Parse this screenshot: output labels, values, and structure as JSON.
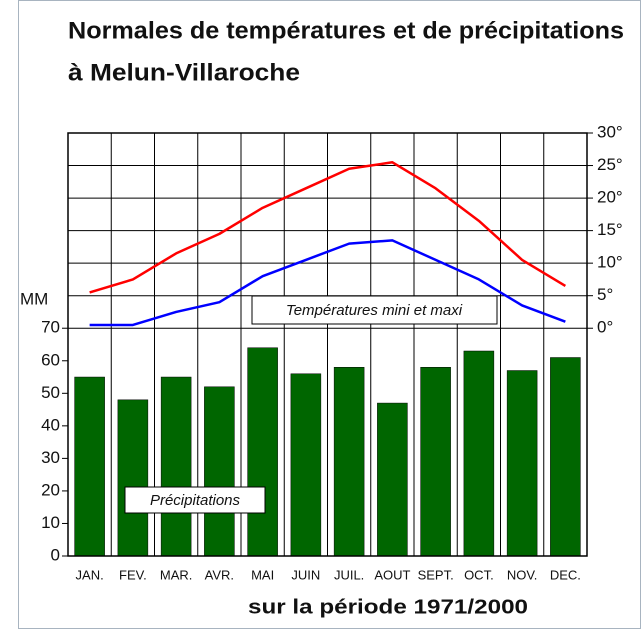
{
  "chart_data": {
    "type": "bar",
    "title": [
      "Normales de températures et de précipitations",
      "à Melun-Villaroche"
    ],
    "subtitle": "sur la période 1971/2000",
    "y_label": "MM",
    "annotations": [
      "Températures mini et maxi"
    ],
    "categories": [
      "JAN.",
      "FEV.",
      "MAR.",
      "AVR.",
      "MAI",
      "JUIN",
      "JUIL.",
      "AOUT",
      "SEPT.",
      "OCT.",
      "NOV.",
      "DEC."
    ],
    "series": [
      {
        "name": "Précipitations",
        "type": "bar",
        "color": "#006600",
        "values": [
          55,
          48,
          55,
          52,
          64,
          56,
          58,
          47,
          58,
          63,
          57,
          61
        ]
      },
      {
        "type": "line",
        "axis": "y2",
        "color": "#ff0000",
        "values": [
          5.5,
          7.5,
          11.5,
          14.5,
          18.5,
          21.5,
          24.5,
          25.5,
          21.5,
          16.5,
          10.5,
          6.5
        ]
      },
      {
        "type": "line",
        "axis": "y2",
        "color": "#0000ff",
        "values": [
          0.5,
          0.5,
          2.5,
          4,
          8,
          10.5,
          13,
          13.5,
          10.5,
          7.5,
          3.5,
          1
        ]
      }
    ],
    "ylim": [
      0,
      130
    ],
    "yticks": [
      0,
      10,
      20,
      30,
      40,
      50,
      60,
      70
    ],
    "y2lim": [
      -35,
      30
    ],
    "y2ticks": [
      {
        "value": 0,
        "label": "0°"
      },
      {
        "value": 5,
        "label": "5°"
      },
      {
        "value": 10,
        "label": "10°"
      },
      {
        "value": 15,
        "label": "15°"
      },
      {
        "value": 20,
        "label": "20°"
      },
      {
        "value": 25,
        "label": "25°"
      },
      {
        "value": 30,
        "label": "30°"
      }
    ],
    "grid": true
  }
}
